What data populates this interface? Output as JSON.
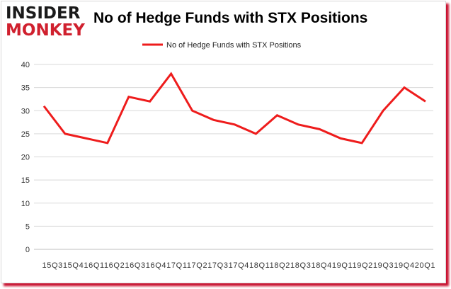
{
  "header": {
    "logo_top": "INSIDER",
    "logo_bottom": "MONKEY",
    "title": "No of Hedge Funds with STX Positions"
  },
  "colors": {
    "line": "#ee1c1c",
    "grid": "#d9d9d9",
    "axis": "#bfbfbf",
    "frame_shadow": "#c8102e"
  },
  "chart_data": {
    "type": "line",
    "title": "No of Hedge Funds with STX Positions",
    "xlabel": "",
    "ylabel": "",
    "ylim": [
      0,
      40
    ],
    "yticks": [
      0,
      5,
      10,
      15,
      20,
      25,
      30,
      35,
      40
    ],
    "x_tick_text": "15Q315Q416Q116Q216Q316Q417Q117Q217Q317Q418Q118Q218Q318Q419Q119Q219Q319Q420Q1",
    "categories": [
      "15Q3",
      "15Q4",
      "16Q1",
      "16Q2",
      "16Q3",
      "16Q4",
      "17Q1",
      "17Q2",
      "17Q3",
      "17Q4",
      "18Q1",
      "18Q2",
      "18Q3",
      "18Q4",
      "19Q1",
      "19Q2",
      "19Q3",
      "19Q4",
      "20Q1"
    ],
    "series": [
      {
        "name": "No of Hedge Funds with STX Positions",
        "values": [
          31,
          25,
          24,
          23,
          33,
          32,
          38,
          30,
          28,
          27,
          25,
          29,
          27,
          26,
          24,
          23,
          30,
          35,
          32
        ]
      }
    ],
    "grid": true,
    "legend": "top-center"
  }
}
